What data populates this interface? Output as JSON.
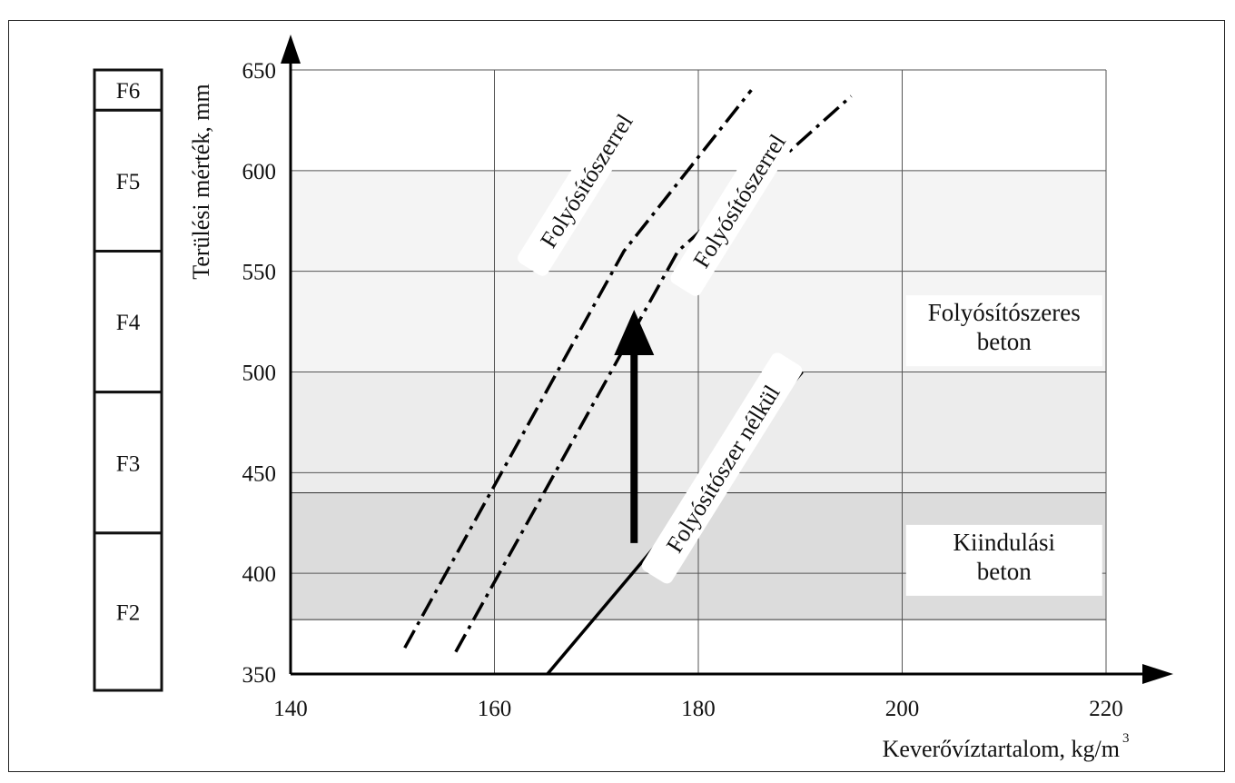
{
  "chart_data": {
    "type": "line",
    "xlabel": "Keverővíztartalom, kg/m",
    "xlabel_sup": "3",
    "ylabel": "Terülési mérték, mm",
    "xlim": [
      140,
      220
    ],
    "ylim": [
      350,
      650
    ],
    "x_ticks": [
      "140",
      "160",
      "180",
      "200",
      "220"
    ],
    "y_ticks": [
      "350",
      "400",
      "450",
      "500",
      "550",
      "600",
      "650"
    ],
    "grid": true,
    "bands": [
      {
        "name": "Kiindulási beton",
        "y_from": 377,
        "y_to": 440,
        "color": "#dcdcdc"
      },
      {
        "name": "Folyósítószeres beton",
        "y_from": 440,
        "y_to": 500,
        "color": "#ececec"
      },
      {
        "name": "Folyósítószeres beton",
        "y_from": 500,
        "y_to": 600,
        "color": "#f4f4f4"
      }
    ],
    "band_labels": [
      {
        "lines": [
          "Folyósítószeres",
          "beton"
        ],
        "x": 210,
        "y": 520
      },
      {
        "lines": [
          "Kiindulási",
          "beton"
        ],
        "x": 210,
        "y": 406
      }
    ],
    "series": [
      {
        "name": "Folyósítószer nélkül",
        "style": "solid",
        "points": [
          [
            165.2,
            350
          ],
          [
            190.2,
            500
          ]
        ],
        "label_at": [
          182.4,
          452
        ],
        "angle": -58
      },
      {
        "name": "Folyósítószerrel",
        "style": "dashdot",
        "points": [
          [
            151.2,
            363
          ],
          [
            172.7,
            560
          ],
          [
            185.2,
            640
          ]
        ],
        "label_at": [
          169,
          595
        ],
        "angle": -58
      },
      {
        "name": "Folyósítószerrel",
        "style": "dashdot",
        "points": [
          [
            156.2,
            361
          ],
          [
            178,
            560
          ],
          [
            195,
            637
          ]
        ],
        "label_at": [
          184,
          585
        ],
        "angle": -58
      }
    ],
    "arrow": {
      "x": 173.7,
      "y_from": 415,
      "y_to": 530
    },
    "classes": [
      {
        "name": "F6",
        "from": 630,
        "to": 650
      },
      {
        "name": "F5",
        "from": 560,
        "to": 630
      },
      {
        "name": "F4",
        "from": 490,
        "to": 560
      },
      {
        "name": "F3",
        "from": 420,
        "to": 490
      },
      {
        "name": "F2",
        "from": 340,
        "to": 420
      }
    ]
  }
}
